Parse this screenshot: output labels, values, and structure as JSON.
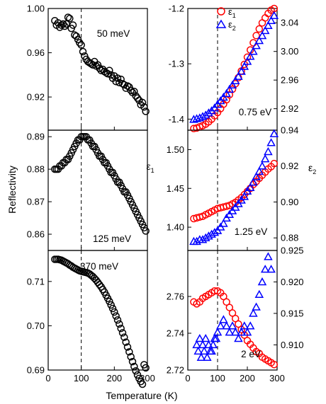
{
  "figure": {
    "xlabel": "Temperature (K)",
    "left_ylabel": "Reflectivity",
    "mid_ylabel": "ε",
    "mid_ylabel_sub": "1",
    "right_ylabel": "ε",
    "right_ylabel_sub": "2",
    "legend": [
      {
        "symbol": "ε",
        "sub": "1",
        "marker": "circle",
        "color": "#ff0000"
      },
      {
        "symbol": "ε",
        "sub": "2",
        "marker": "triangle",
        "color": "#0000ff"
      }
    ],
    "vline_x": 100
  },
  "chart_data": [
    {
      "type": "scatter",
      "panel": "left-top",
      "annotation": "50 meV",
      "xlim": [
        0,
        300
      ],
      "ylim": [
        0.89,
        1.0
      ],
      "yticks": [
        "1.00",
        "0.96",
        "0.92"
      ],
      "ytick_values": [
        1.0,
        0.96,
        0.92
      ],
      "xticks": [],
      "series": [
        {
          "marker": "circle",
          "color": "#000000",
          "fill": "none",
          "x": [
            20,
            25,
            30,
            35,
            40,
            45,
            50,
            55,
            60,
            65,
            70,
            75,
            80,
            85,
            90,
            95,
            100,
            105,
            110,
            115,
            120,
            125,
            130,
            135,
            140,
            145,
            150,
            155,
            160,
            165,
            170,
            175,
            180,
            185,
            190,
            195,
            200,
            205,
            210,
            215,
            220,
            225,
            230,
            235,
            240,
            245,
            250,
            255,
            260,
            265,
            270,
            275,
            280,
            285,
            290,
            295
          ],
          "y": [
            0.989,
            0.985,
            0.987,
            0.983,
            0.985,
            0.986,
            0.984,
            0.986,
            0.992,
            0.991,
            0.982,
            0.985,
            0.976,
            0.975,
            0.972,
            0.969,
            0.967,
            0.961,
            0.957,
            0.954,
            0.952,
            0.951,
            0.95,
            0.949,
            0.952,
            0.948,
            0.949,
            0.946,
            0.944,
            0.945,
            0.943,
            0.942,
            0.941,
            0.944,
            0.94,
            0.937,
            0.939,
            0.934,
            0.937,
            0.933,
            0.936,
            0.932,
            0.931,
            0.928,
            0.93,
            0.929,
            0.926,
            0.924,
            0.925,
            0.921,
            0.919,
            0.917,
            0.913,
            0.915,
            0.911,
            0.907
          ]
        }
      ]
    },
    {
      "type": "scatter",
      "panel": "left-middle",
      "annotation": "125 meV",
      "xlim": [
        0,
        300
      ],
      "ylim": [
        0.855,
        0.892
      ],
      "yticks": [
        "0.89",
        "0.88",
        "0.87",
        "0.86"
      ],
      "ytick_values": [
        0.89,
        0.88,
        0.87,
        0.86
      ],
      "xticks": [],
      "series": [
        {
          "marker": "circle",
          "color": "#000000",
          "fill": "none",
          "x": [
            20,
            25,
            30,
            35,
            40,
            45,
            50,
            55,
            60,
            65,
            70,
            75,
            80,
            85,
            90,
            95,
            100,
            105,
            110,
            115,
            120,
            125,
            130,
            135,
            140,
            145,
            150,
            155,
            160,
            165,
            170,
            175,
            180,
            185,
            190,
            195,
            200,
            205,
            210,
            215,
            220,
            225,
            230,
            235,
            240,
            245,
            250,
            255,
            260,
            265,
            270,
            275,
            280,
            285,
            290,
            295
          ],
          "y": [
            0.88,
            0.88,
            0.88,
            0.881,
            0.881,
            0.882,
            0.882,
            0.883,
            0.883,
            0.884,
            0.885,
            0.886,
            0.887,
            0.888,
            0.889,
            0.889,
            0.89,
            0.89,
            0.89,
            0.89,
            0.889,
            0.889,
            0.888,
            0.887,
            0.887,
            0.886,
            0.885,
            0.884,
            0.884,
            0.883,
            0.882,
            0.882,
            0.881,
            0.88,
            0.879,
            0.879,
            0.878,
            0.877,
            0.876,
            0.876,
            0.875,
            0.874,
            0.873,
            0.873,
            0.872,
            0.871,
            0.87,
            0.869,
            0.868,
            0.867,
            0.866,
            0.865,
            0.864,
            0.863,
            0.862,
            0.861
          ]
        }
      ]
    },
    {
      "type": "scatter",
      "panel": "left-bottom",
      "annotation": "370 meV",
      "xlim": [
        0,
        300
      ],
      "ylim": [
        0.69,
        0.717
      ],
      "yticks": [
        "0.71",
        "0.70",
        "0.69"
      ],
      "ytick_values": [
        0.71,
        0.7,
        0.69
      ],
      "xticks": [
        "0",
        "100",
        "200",
        "300"
      ],
      "xtick_values": [
        0,
        100,
        200,
        300
      ],
      "series": [
        {
          "marker": "circle",
          "color": "#000000",
          "fill": "none",
          "x": [
            20,
            25,
            30,
            35,
            40,
            45,
            50,
            55,
            60,
            65,
            70,
            75,
            80,
            85,
            90,
            95,
            100,
            105,
            110,
            115,
            120,
            125,
            130,
            135,
            140,
            145,
            150,
            155,
            160,
            165,
            170,
            175,
            180,
            185,
            190,
            195,
            200,
            205,
            210,
            215,
            220,
            225,
            230,
            235,
            240,
            245,
            250,
            255,
            260,
            265,
            270,
            275,
            280,
            285,
            290,
            295
          ],
          "y": [
            0.715,
            0.715,
            0.715,
            0.7149,
            0.7148,
            0.7146,
            0.7144,
            0.7142,
            0.714,
            0.7137,
            0.7135,
            0.7132,
            0.713,
            0.7128,
            0.7126,
            0.7124,
            0.7123,
            0.7122,
            0.7121,
            0.712,
            0.7119,
            0.7117,
            0.7114,
            0.7111,
            0.7107,
            0.7103,
            0.7098,
            0.7093,
            0.7088,
            0.7082,
            0.7076,
            0.7069,
            0.7062,
            0.7055,
            0.7047,
            0.7039,
            0.7031,
            0.7022,
            0.7013,
            0.7004,
            0.6994,
            0.6984,
            0.6974,
            0.6963,
            0.6952,
            0.6941,
            0.693,
            0.6919,
            0.6908,
            0.6898,
            0.6889,
            0.6881,
            0.6874,
            0.6868,
            0.6912,
            0.6905
          ]
        }
      ]
    },
    {
      "type": "scatter",
      "panel": "right-top",
      "annotation": "0.75 eV",
      "xlim": [
        0,
        300
      ],
      "ylim": [
        -1.42,
        -1.2
      ],
      "y2lim": [
        2.89,
        3.06
      ],
      "yticks": [
        "-1.2",
        "-1.3",
        "-1.4"
      ],
      "ytick_values": [
        -1.2,
        -1.3,
        -1.4
      ],
      "y2ticks": [
        "3.04",
        "3.00",
        "2.96",
        "2.92"
      ],
      "y2tick_values": [
        3.04,
        3.0,
        2.96,
        2.92
      ],
      "xticks": [],
      "series": [
        {
          "name": "ε1",
          "axis": "left",
          "marker": "circle",
          "color": "#ff0000",
          "x": [
            20,
            30,
            40,
            50,
            60,
            70,
            80,
            90,
            100,
            110,
            120,
            130,
            140,
            150,
            160,
            170,
            180,
            190,
            200,
            210,
            220,
            230,
            240,
            250,
            260,
            270,
            280,
            290
          ],
          "y": [
            -1.417,
            -1.416,
            -1.414,
            -1.412,
            -1.409,
            -1.405,
            -1.4,
            -1.394,
            -1.388,
            -1.381,
            -1.373,
            -1.365,
            -1.356,
            -1.346,
            -1.336,
            -1.325,
            -1.313,
            -1.301,
            -1.288,
            -1.275,
            -1.262,
            -1.249,
            -1.237,
            -1.226,
            -1.217,
            -1.209,
            -1.203,
            -1.2
          ]
        },
        {
          "name": "ε2",
          "axis": "right",
          "marker": "triangle",
          "color": "#0000ff",
          "x": [
            20,
            30,
            40,
            50,
            60,
            70,
            80,
            90,
            100,
            110,
            120,
            130,
            140,
            150,
            160,
            170,
            180,
            190,
            200,
            210,
            220,
            230,
            240,
            250,
            260,
            270,
            280,
            290
          ],
          "y": [
            2.905,
            2.906,
            2.907,
            2.909,
            2.911,
            2.914,
            2.917,
            2.921,
            2.926,
            2.931,
            2.936,
            2.941,
            2.947,
            2.953,
            2.959,
            2.965,
            2.972,
            2.979,
            2.986,
            2.993,
            3.0,
            3.008,
            3.015,
            3.022,
            3.029,
            3.036,
            3.043,
            3.05
          ]
        }
      ]
    },
    {
      "type": "scatter",
      "panel": "right-middle",
      "annotation": "1.25 eV",
      "xlim": [
        0,
        300
      ],
      "ylim": [
        1.37,
        1.525
      ],
      "y2lim": [
        0.873,
        0.94
      ],
      "yticks": [
        "1.50",
        "1.45",
        "1.40"
      ],
      "ytick_values": [
        1.5,
        1.45,
        1.4
      ],
      "y2ticks": [
        "0.94",
        "0.92",
        "0.90",
        "0.88"
      ],
      "y2tick_values": [
        0.94,
        0.92,
        0.9,
        0.88
      ],
      "xticks": [],
      "series": [
        {
          "name": "ε1",
          "axis": "left",
          "marker": "circle",
          "color": "#ff0000",
          "x": [
            20,
            30,
            40,
            50,
            60,
            70,
            80,
            90,
            100,
            110,
            120,
            130,
            140,
            150,
            160,
            170,
            180,
            190,
            200,
            210,
            220,
            230,
            240,
            250,
            260,
            270,
            280,
            290
          ],
          "y": [
            1.411,
            1.412,
            1.413,
            1.414,
            1.416,
            1.418,
            1.42,
            1.422,
            1.424,
            1.425,
            1.426,
            1.427,
            1.428,
            1.43,
            1.432,
            1.435,
            1.438,
            1.442,
            1.446,
            1.45,
            1.455,
            1.459,
            1.463,
            1.467,
            1.471,
            1.475,
            1.478,
            1.482
          ]
        },
        {
          "name": "ε2",
          "axis": "right",
          "marker": "triangle",
          "color": "#0000ff",
          "x": [
            20,
            30,
            40,
            50,
            60,
            70,
            80,
            90,
            100,
            110,
            120,
            130,
            140,
            150,
            160,
            170,
            180,
            190,
            200,
            210,
            220,
            230,
            240,
            250,
            260,
            270,
            280,
            290
          ],
          "y": [
            0.878,
            0.878,
            0.879,
            0.879,
            0.88,
            0.881,
            0.882,
            0.883,
            0.884,
            0.886,
            0.888,
            0.891,
            0.893,
            0.895,
            0.897,
            0.899,
            0.901,
            0.903,
            0.906,
            0.908,
            0.911,
            0.914,
            0.917,
            0.92,
            0.924,
            0.928,
            0.933,
            0.938
          ]
        }
      ]
    },
    {
      "type": "scatter",
      "panel": "right-bottom",
      "annotation": "2 eV",
      "xlim": [
        0,
        300
      ],
      "ylim": [
        2.72,
        2.785
      ],
      "y2lim": [
        0.906,
        0.925
      ],
      "yticks": [
        "2.76",
        "2.74",
        "2.72"
      ],
      "ytick_values": [
        2.76,
        2.74,
        2.72
      ],
      "y2ticks": [
        "0.925",
        "0.920",
        "0.915",
        "0.910"
      ],
      "y2tick_values": [
        0.925,
        0.92,
        0.915,
        0.91
      ],
      "xticks": [
        "0",
        "100",
        "200",
        "300"
      ],
      "xtick_values": [
        0,
        100,
        200,
        300
      ],
      "series": [
        {
          "name": "ε1",
          "axis": "left",
          "marker": "circle",
          "color": "#ff0000",
          "x": [
            20,
            30,
            40,
            50,
            60,
            70,
            80,
            90,
            100,
            110,
            120,
            130,
            140,
            150,
            160,
            170,
            180,
            190,
            200,
            210,
            220,
            230,
            240,
            250,
            260,
            270,
            280,
            290
          ],
          "y": [
            2.757,
            2.756,
            2.757,
            2.759,
            2.76,
            2.761,
            2.762,
            2.763,
            2.763,
            2.762,
            2.76,
            2.757,
            2.754,
            2.751,
            2.748,
            2.745,
            2.742,
            2.739,
            2.736,
            2.734,
            2.732,
            2.73,
            2.729,
            2.727,
            2.726,
            2.725,
            2.724,
            2.723
          ]
        },
        {
          "name": "ε2",
          "axis": "right",
          "marker": "triangle",
          "color": "#0000ff",
          "x": [
            30,
            35,
            40,
            45,
            50,
            55,
            60,
            65,
            70,
            75,
            80,
            85,
            90,
            95,
            100,
            110,
            120,
            130,
            140,
            150,
            160,
            170,
            180,
            190,
            200,
            210,
            220,
            230,
            240,
            250,
            260,
            270,
            280
          ],
          "y": [
            0.91,
            0.909,
            0.911,
            0.908,
            0.91,
            0.909,
            0.911,
            0.908,
            0.91,
            0.909,
            0.909,
            0.91,
            0.911,
            0.911,
            0.912,
            0.913,
            0.914,
            0.913,
            0.912,
            0.913,
            0.912,
            0.911,
            0.912,
            0.913,
            0.912,
            0.913,
            0.915,
            0.916,
            0.918,
            0.92,
            0.922,
            0.924,
            0.922
          ]
        }
      ]
    }
  ]
}
